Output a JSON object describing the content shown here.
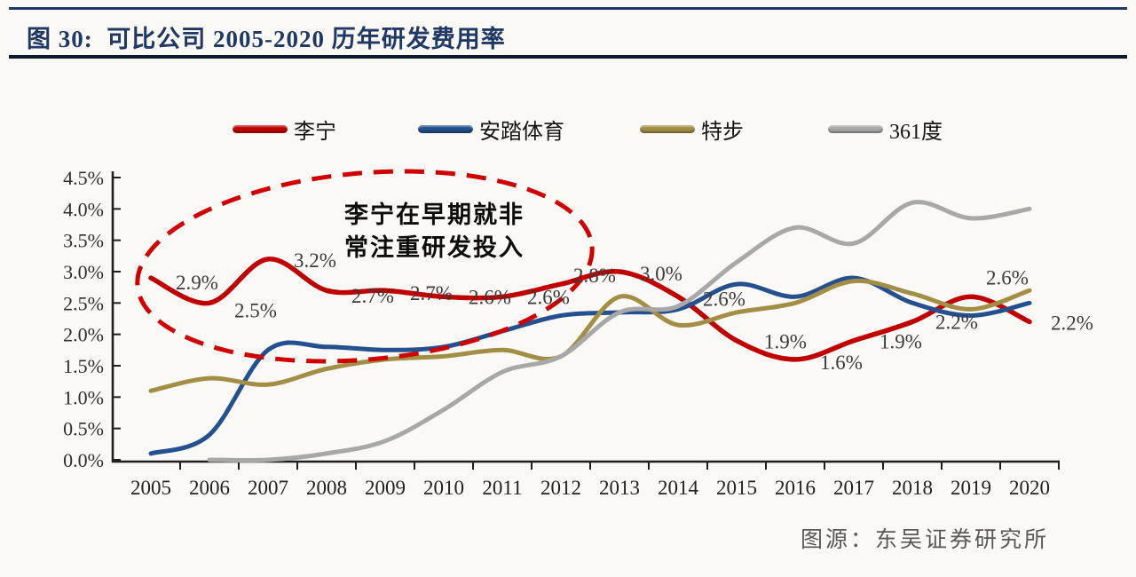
{
  "header": {
    "title": "图 30:  可比公司 2005-2020 历年研发费用率"
  },
  "legend": {
    "items": [
      {
        "label": "李宁",
        "color": "#C00000"
      },
      {
        "label": "安踏体育",
        "color": "#24508F"
      },
      {
        "label": "特步",
        "color": "#A38E45"
      },
      {
        "label": "361度",
        "color": "#A8A8A8"
      }
    ]
  },
  "annotation": {
    "line1": "李宁在早期就非",
    "line2": "常注重研发投入",
    "ellipse_color": "#D00000"
  },
  "footer": {
    "source": "图源：东吴证券研究所"
  },
  "chart_data": {
    "type": "line",
    "title": "可比公司 2005-2020 历年研发费用率",
    "x": [
      "2005",
      "2006",
      "2007",
      "2008",
      "2009",
      "2010",
      "2011",
      "2012",
      "2013",
      "2014",
      "2015",
      "2016",
      "2017",
      "2018",
      "2019",
      "2020"
    ],
    "ylim": [
      0,
      4.5
    ],
    "yticks": [
      "0.0%",
      "0.5%",
      "1.0%",
      "1.5%",
      "2.0%",
      "2.5%",
      "3.0%",
      "3.5%",
      "4.0%",
      "4.5%"
    ],
    "grid": false,
    "legend_position": "top",
    "series": [
      {
        "name": "李宁",
        "color": "#C00000",
        "values": [
          2.9,
          2.5,
          3.2,
          2.7,
          2.7,
          2.6,
          2.6,
          2.8,
          3.0,
          2.6,
          1.9,
          1.6,
          1.9,
          2.2,
          2.6,
          2.2
        ],
        "labels": [
          "2.9%",
          "2.5%",
          "3.2%",
          "2.7%",
          "2.7%",
          "2.6%",
          "2.6%",
          "2.8%",
          "3.0%",
          "2.6%",
          "1.9%",
          "1.6%",
          "1.9%",
          "2.2%",
          "2.6%",
          "2.2%"
        ]
      },
      {
        "name": "安踏体育",
        "color": "#24508F",
        "values": [
          0.1,
          0.4,
          1.75,
          1.8,
          1.75,
          1.8,
          2.05,
          2.3,
          2.35,
          2.4,
          2.8,
          2.6,
          2.9,
          2.5,
          2.3,
          2.5
        ]
      },
      {
        "name": "特步",
        "color": "#A38E45",
        "values": [
          1.1,
          1.3,
          1.2,
          1.45,
          1.6,
          1.65,
          1.75,
          1.65,
          2.6,
          2.15,
          2.35,
          2.5,
          2.85,
          2.65,
          2.4,
          2.7
        ]
      },
      {
        "name": "361度",
        "color": "#A8A8A8",
        "values": [
          null,
          0.0,
          0.0,
          0.1,
          0.3,
          0.8,
          1.4,
          1.65,
          2.35,
          2.45,
          3.15,
          3.7,
          3.45,
          4.1,
          3.85,
          4.0
        ]
      }
    ]
  }
}
